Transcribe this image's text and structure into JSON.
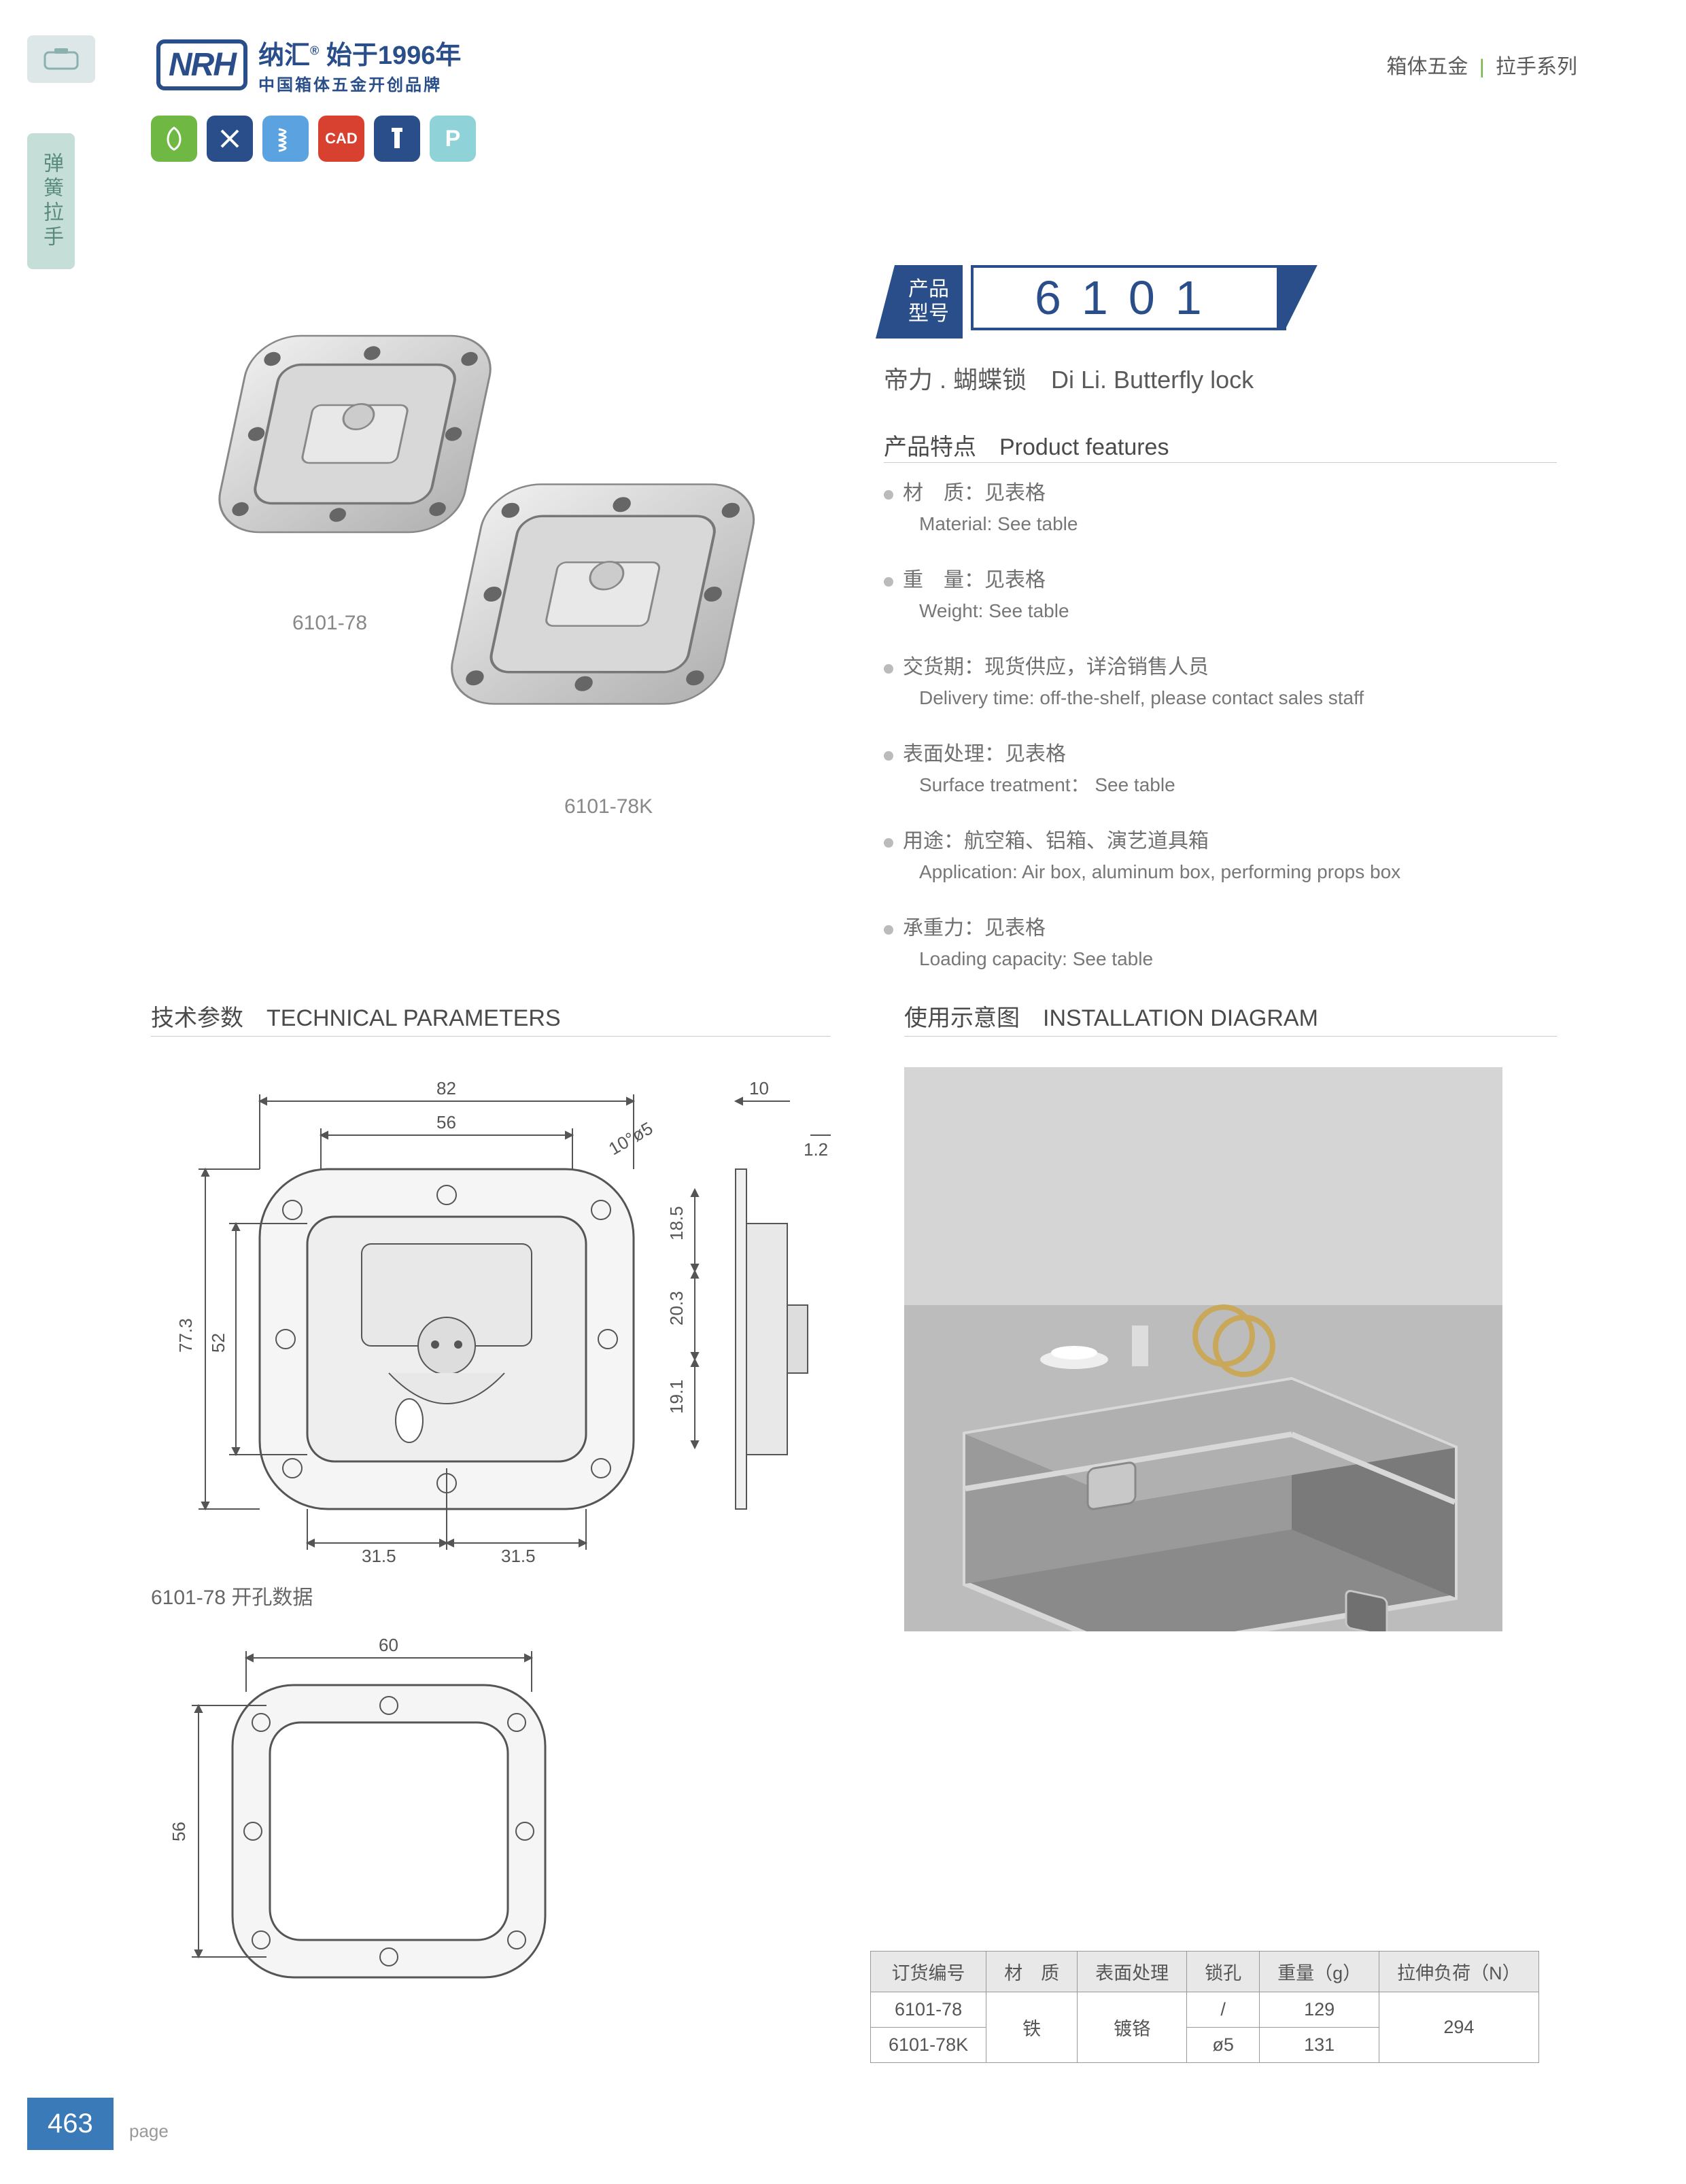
{
  "header": {
    "logo_text": "NRH",
    "brand_cn": "纳汇",
    "brand_since": "始于1996年",
    "brand_sub": "中国箱体五金开创品牌",
    "category_a": "箱体五金",
    "category_b": "拉手系列"
  },
  "side_tab": "弹簧拉手",
  "icon_badges": [
    {
      "bg": "#6fb844",
      "glyph": "leaf"
    },
    {
      "bg": "#294e8a",
      "glyph": "tools"
    },
    {
      "bg": "#5aa3e0",
      "glyph": "spring"
    },
    {
      "bg": "#d84030",
      "glyph": "CAD",
      "text": true
    },
    {
      "bg": "#294e8a",
      "glyph": "screw"
    },
    {
      "bg": "#8fd2d8",
      "glyph": "P",
      "text": true
    }
  ],
  "model": {
    "label_cn1": "产品",
    "label_cn2": "型号",
    "number": "6101"
  },
  "subtitle": "帝力 . 蝴蝶锁　Di Li. Butterfly lock",
  "image_labels": {
    "a": "6101-78",
    "b": "6101-78K"
  },
  "features_title": "产品特点　Product features",
  "features": [
    {
      "cn": "材　质：见表格",
      "en": "Material: See table"
    },
    {
      "cn": "重　量：见表格",
      "en": "Weight: See table"
    },
    {
      "cn": "交货期：现货供应，详洽销售人员",
      "en": "Delivery time: off-the-shelf, please contact sales staff"
    },
    {
      "cn": "表面处理：见表格",
      "en": "Surface treatment： See table"
    },
    {
      "cn": "用途：航空箱、铝箱、演艺道具箱",
      "en": "Application: Air box, aluminum box, performing props box"
    },
    {
      "cn": "承重力：见表格",
      "en": "Loading capacity: See table"
    }
  ],
  "sections": {
    "tech": "技术参数　TECHNICAL PARAMETERS",
    "install": "使用示意图　INSTALLATION DIAGRAM"
  },
  "tech_diagram": {
    "main": {
      "outer_w": "82",
      "inner_w": "56",
      "outer_h": "77.3",
      "inner_h": "52",
      "left_offset": "31.5",
      "right_offset": "31.5",
      "side_thickness": "10",
      "side_12": "1.2",
      "v1": "18.5",
      "v2": "20.3",
      "v3": "19.1",
      "angle": "10°ø5"
    },
    "cutout_caption": "6101-78 开孔数据",
    "cutout": {
      "w": "60",
      "h": "56"
    }
  },
  "spec_table": {
    "headers": [
      "订货编号",
      "材　质",
      "表面处理",
      "锁孔",
      "重量（g）",
      "拉伸负荷（N）"
    ],
    "rows": [
      {
        "code": "6101-78",
        "hole": "/",
        "weight": "129"
      },
      {
        "code": "6101-78K",
        "hole": "ø5",
        "weight": "131"
      }
    ],
    "material": "铁",
    "surface": "镀铬",
    "load": "294"
  },
  "page": {
    "num": "463",
    "label": "page"
  },
  "colors": {
    "brand_blue": "#294e8a",
    "accent_green": "#6fb844",
    "tab_bg": "#c5dfd8",
    "page_blue": "#3a7ab8"
  }
}
